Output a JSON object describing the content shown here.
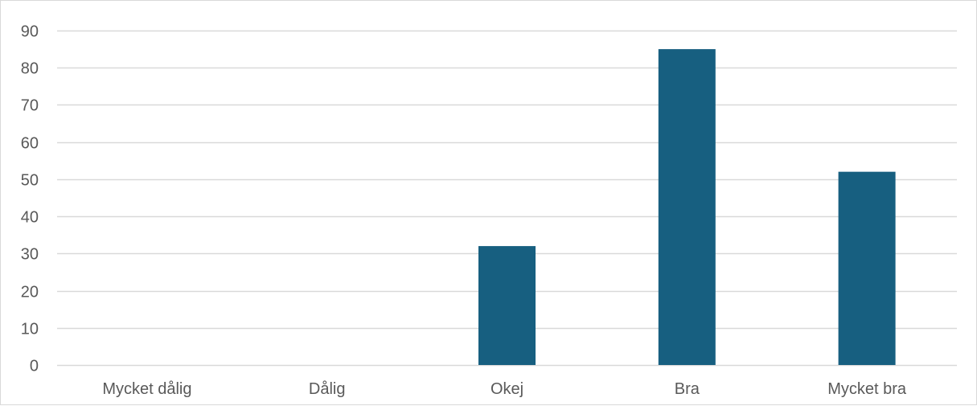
{
  "chart_data": {
    "type": "bar",
    "categories": [
      "Mycket dålig",
      "Dålig",
      "Okej",
      "Bra",
      "Mycket bra"
    ],
    "values": [
      0,
      0,
      32,
      85,
      52
    ],
    "ylim": [
      0,
      90
    ],
    "yticks": [
      0,
      10,
      20,
      30,
      40,
      50,
      60,
      70,
      80,
      90
    ],
    "grid": true,
    "legend": "none",
    "bar_color": "#175f80",
    "grid_color": "#d9d9d9",
    "axis_label_color": "#595959"
  }
}
